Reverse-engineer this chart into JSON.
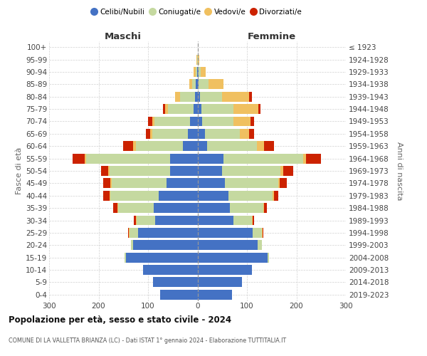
{
  "age_groups": [
    "0-4",
    "5-9",
    "10-14",
    "15-19",
    "20-24",
    "25-29",
    "30-34",
    "35-39",
    "40-44",
    "45-49",
    "50-54",
    "55-59",
    "60-64",
    "65-69",
    "70-74",
    "75-79",
    "80-84",
    "85-89",
    "90-94",
    "95-99",
    "100+"
  ],
  "birth_years": [
    "2019-2023",
    "2014-2018",
    "2009-2013",
    "2004-2008",
    "1999-2003",
    "1994-1998",
    "1989-1993",
    "1984-1988",
    "1979-1983",
    "1974-1978",
    "1969-1973",
    "1964-1968",
    "1959-1963",
    "1954-1958",
    "1949-1953",
    "1944-1948",
    "1939-1943",
    "1934-1938",
    "1929-1933",
    "1924-1928",
    "≤ 1923"
  ],
  "colors": {
    "celibe": "#4472c4",
    "coniugato": "#c5d9a0",
    "vedovo": "#f0c060",
    "divorziato": "#cc2200"
  },
  "maschi": {
    "celibe": [
      75,
      90,
      110,
      145,
      130,
      120,
      85,
      88,
      78,
      62,
      55,
      55,
      30,
      20,
      15,
      8,
      5,
      3,
      1,
      0,
      0
    ],
    "coniugato": [
      0,
      0,
      0,
      2,
      5,
      18,
      38,
      72,
      98,
      112,
      122,
      170,
      95,
      72,
      72,
      52,
      30,
      8,
      3,
      1,
      0
    ],
    "vedovo": [
      0,
      0,
      0,
      0,
      0,
      1,
      1,
      2,
      2,
      2,
      3,
      3,
      5,
      3,
      5,
      5,
      10,
      5,
      4,
      1,
      0
    ],
    "divorziato": [
      0,
      0,
      0,
      0,
      0,
      2,
      5,
      8,
      12,
      15,
      15,
      25,
      20,
      10,
      8,
      5,
      0,
      0,
      0,
      0,
      0
    ]
  },
  "femmine": {
    "nubile": [
      70,
      90,
      110,
      142,
      122,
      112,
      72,
      65,
      62,
      55,
      50,
      52,
      20,
      15,
      10,
      8,
      5,
      2,
      2,
      0,
      0
    ],
    "coniugata": [
      0,
      0,
      0,
      2,
      8,
      18,
      38,
      68,
      90,
      108,
      118,
      162,
      100,
      70,
      62,
      65,
      45,
      20,
      5,
      0,
      0
    ],
    "vedova": [
      0,
      0,
      0,
      0,
      0,
      1,
      2,
      2,
      2,
      3,
      5,
      5,
      15,
      20,
      35,
      50,
      55,
      30,
      10,
      3,
      1
    ],
    "divorziata": [
      0,
      0,
      0,
      0,
      0,
      2,
      3,
      5,
      10,
      15,
      20,
      30,
      20,
      10,
      8,
      5,
      5,
      0,
      0,
      0,
      0
    ]
  },
  "xlim": 300,
  "title_main": "Popolazione per età, sesso e stato civile - 2024",
  "title_sub": "COMUNE DI LA VALLETTA BRIANZA (LC) - Dati ISTAT 1° gennaio 2024 - Elaborazione TUTTITALIA.IT",
  "ylabel_left": "Fasce di età",
  "ylabel_right": "Anni di nascita",
  "label_maschi": "Maschi",
  "label_femmine": "Femmine",
  "legend": [
    "Celibi/Nubili",
    "Coniugati/e",
    "Vedovi/e",
    "Divorziati/e"
  ]
}
